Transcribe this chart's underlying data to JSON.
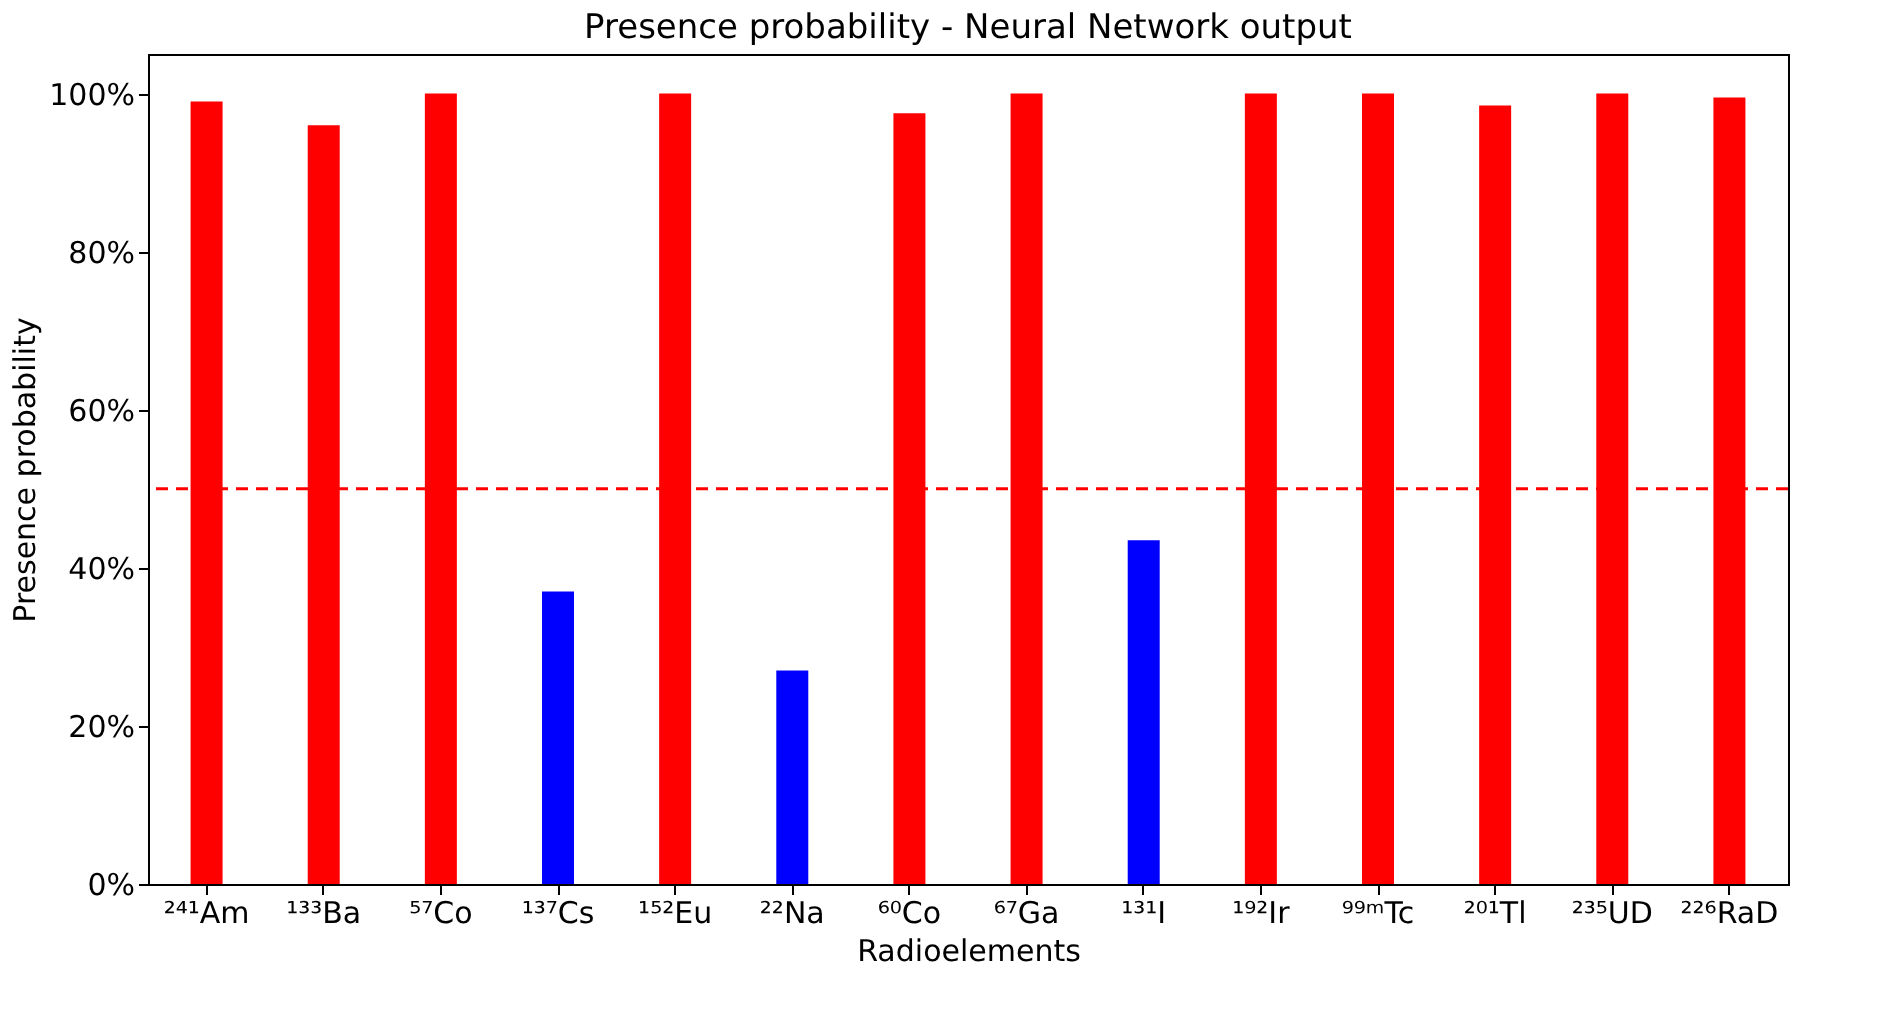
{
  "chart_data": {
    "type": "bar",
    "title": "Presence probability - Neural Network output",
    "xlabel": "Radioelements",
    "ylabel": "Presence probability",
    "categories": [
      "²⁴¹Am",
      "¹³³Ba",
      "⁵⁷Co",
      "¹³⁷Cs",
      "¹⁵²Eu",
      "²²Na",
      "⁶⁰Co",
      "⁶⁷Ga",
      "¹³¹I",
      "¹⁹²Ir",
      "⁹⁹ᵐTc",
      "²⁰¹Tl",
      "²³⁵UD",
      "²²⁶RaD"
    ],
    "values": [
      99,
      96,
      100,
      37,
      100,
      27,
      97.5,
      100,
      43.5,
      100,
      100,
      98.5,
      100,
      99.5
    ],
    "colors": [
      "#ff0000",
      "#ff0000",
      "#ff0000",
      "#0000ff",
      "#ff0000",
      "#0000ff",
      "#ff0000",
      "#ff0000",
      "#0000ff",
      "#ff0000",
      "#ff0000",
      "#ff0000",
      "#ff0000",
      "#ff0000"
    ],
    "ylim": [
      0,
      105
    ],
    "yticks": [
      {
        "value": 0,
        "label": "0%"
      },
      {
        "value": 20,
        "label": "20%"
      },
      {
        "value": 40,
        "label": "40%"
      },
      {
        "value": 60,
        "label": "60%"
      },
      {
        "value": 80,
        "label": "80%"
      },
      {
        "value": 100,
        "label": "100%"
      }
    ],
    "ref_lines": [
      {
        "axis": "y",
        "value": 50,
        "color": "#ff0000",
        "line_style": "dashed"
      }
    ],
    "grid": false
  }
}
